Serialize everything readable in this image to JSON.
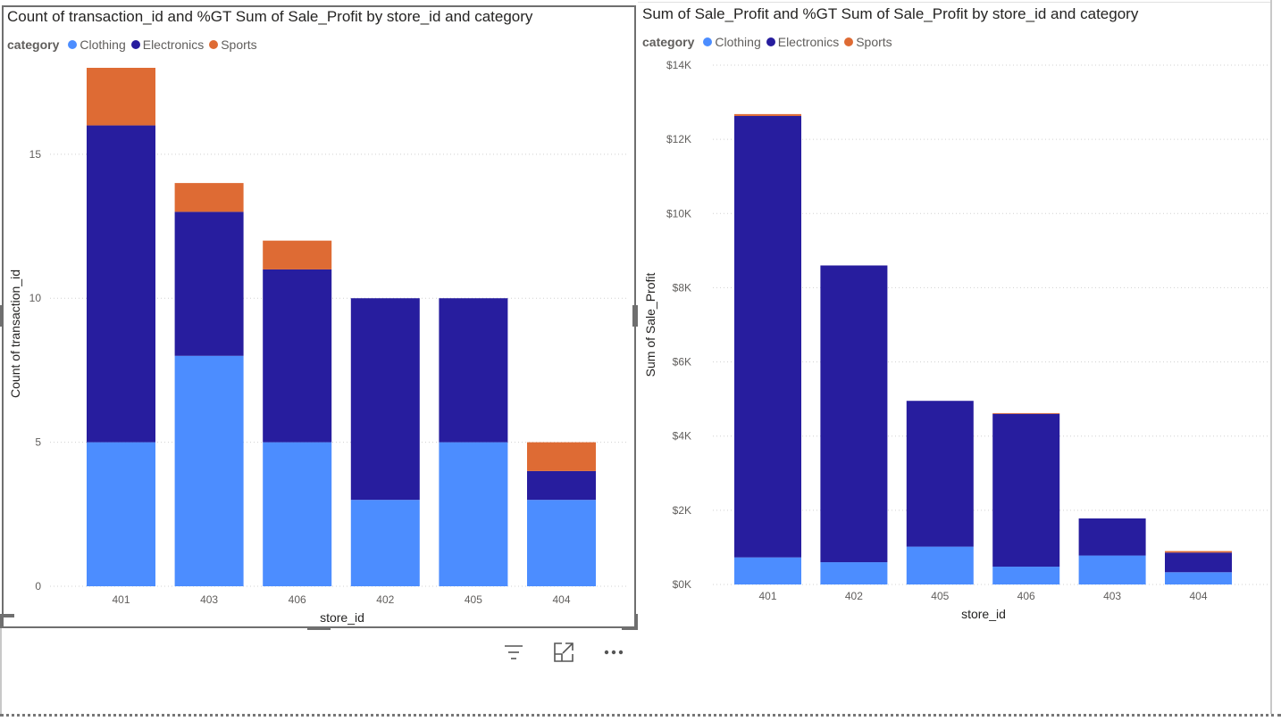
{
  "colors": {
    "Clothing": "#4c8dff",
    "Electronics": "#271d9e",
    "Sports": "#de6b34"
  },
  "left": {
    "title": "Count of transaction_id and %GT Sum of Sale_Profit by store_id and category",
    "legend_title": "category",
    "legend_items": [
      "Clothing",
      "Electronics",
      "Sports"
    ]
  },
  "right": {
    "title": "Sum of Sale_Profit and %GT Sum of Sale_Profit by store_id and category",
    "legend_title": "category",
    "legend_items": [
      "Clothing",
      "Electronics",
      "Sports"
    ]
  },
  "toolbar": {
    "icons": [
      "filter-icon",
      "focus-mode-icon",
      "more-options-icon"
    ]
  },
  "chart_data": [
    {
      "type": "bar",
      "stacked": true,
      "title": "Count of transaction_id and %GT Sum of Sale_Profit by store_id and category",
      "xlabel": "store_id",
      "ylabel": "Count of transaction_id",
      "categories": [
        "401",
        "403",
        "406",
        "402",
        "405",
        "404"
      ],
      "series": [
        {
          "name": "Clothing",
          "values": [
            5,
            8,
            5,
            3,
            5,
            3
          ]
        },
        {
          "name": "Electronics",
          "values": [
            11,
            5,
            6,
            7,
            5,
            1
          ]
        },
        {
          "name": "Sports",
          "values": [
            2,
            1,
            1,
            0,
            0,
            1
          ]
        }
      ],
      "ylim": [
        0,
        18
      ],
      "yticks": [
        0,
        5,
        10,
        15
      ],
      "ytick_labels": [
        "0",
        "5",
        "10",
        "15"
      ],
      "grid": true,
      "legend_position": "top-left"
    },
    {
      "type": "bar",
      "stacked": true,
      "title": "Sum of Sale_Profit and %GT Sum of Sale_Profit by store_id and category",
      "xlabel": "store_id",
      "ylabel": "Sum of Sale_Profit",
      "categories": [
        "401",
        "402",
        "405",
        "406",
        "403",
        "404"
      ],
      "series": [
        {
          "name": "Clothing",
          "values": [
            730,
            600,
            1020,
            480,
            780,
            330
          ]
        },
        {
          "name": "Electronics",
          "values": [
            11900,
            8000,
            3930,
            4120,
            1000,
            530
          ]
        },
        {
          "name": "Sports",
          "values": [
            50,
            0,
            0,
            20,
            0,
            40
          ]
        }
      ],
      "ylim": [
        0,
        14000
      ],
      "yticks": [
        0,
        2000,
        4000,
        6000,
        8000,
        10000,
        12000,
        14000
      ],
      "ytick_labels": [
        "$0K",
        "$2K",
        "$4K",
        "$6K",
        "$8K",
        "$10K",
        "$12K",
        "$14K"
      ],
      "grid": true,
      "legend_position": "top-left"
    }
  ]
}
